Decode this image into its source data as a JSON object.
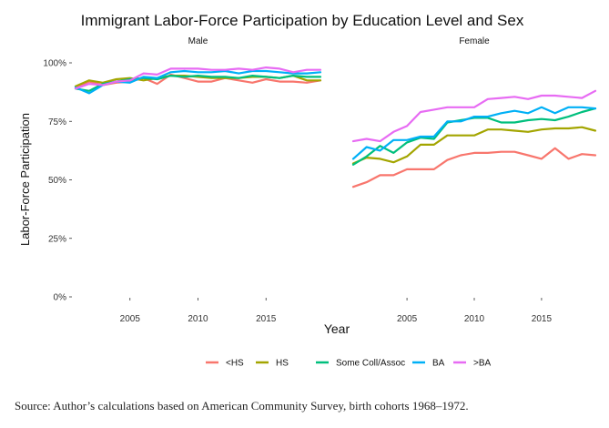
{
  "chart_data": {
    "type": "line",
    "title": "Immigrant Labor-Force Participation by Education Level and Sex",
    "xlabel": "Year",
    "ylabel": "Labor-Force Participation",
    "x": [
      2001,
      2002,
      2003,
      2004,
      2005,
      2006,
      2007,
      2008,
      2009,
      2010,
      2011,
      2012,
      2013,
      2014,
      2015,
      2016,
      2017,
      2018,
      2019
    ],
    "xticks": [
      2005,
      2010,
      2015
    ],
    "xtick_labels": [
      "2005",
      "2010",
      "2015"
    ],
    "xlim": [
      2000.8,
      2019.2
    ],
    "ylim": [
      0,
      100
    ],
    "yticks": [
      0,
      25,
      50,
      75,
      100
    ],
    "ytick_labels": [
      "0%",
      "25%",
      "50%",
      "75%",
      "100%"
    ],
    "grid": false,
    "legend_position": "bottom",
    "panels": [
      {
        "name": "Male",
        "series": [
          {
            "name": "<HS",
            "color": "#F8766D",
            "values": [
              89.5,
              92.0,
              90.5,
              91.5,
              92.0,
              93.5,
              91.0,
              95.0,
              93.5,
              92.0,
              92.0,
              93.5,
              92.5,
              91.5,
              93.0,
              92.0,
              92.0,
              91.5,
              92.5
            ]
          },
          {
            "name": "HS",
            "color": "#A3A500",
            "values": [
              90.0,
              92.5,
              91.5,
              93.0,
              93.5,
              92.5,
              93.5,
              94.5,
              94.5,
              94.0,
              93.5,
              93.5,
              93.5,
              94.0,
              94.0,
              93.5,
              94.5,
              92.5,
              92.5
            ]
          },
          {
            "name": "Some Coll/Assoc",
            "color": "#00BF7D",
            "values": [
              89.0,
              88.0,
              91.0,
              92.0,
              93.0,
              93.5,
              93.0,
              94.5,
              94.0,
              94.5,
              94.0,
              94.0,
              93.5,
              94.5,
              94.0,
              93.5,
              94.5,
              94.0,
              94.0
            ]
          },
          {
            "name": "BA",
            "color": "#00B0F6",
            "values": [
              89.5,
              87.0,
              90.5,
              92.0,
              91.5,
              94.0,
              93.5,
              96.0,
              96.5,
              96.0,
              96.0,
              96.5,
              95.5,
              96.5,
              96.5,
              96.0,
              95.5,
              95.5,
              96.0
            ]
          },
          {
            "name": ">BA",
            "color": "#E76BF3",
            "values": [
              89.0,
              91.0,
              90.5,
              92.0,
              92.5,
              95.5,
              95.0,
              97.5,
              97.5,
              97.5,
              97.0,
              97.0,
              97.5,
              97.0,
              98.0,
              97.5,
              96.0,
              97.0,
              97.0
            ]
          }
        ]
      },
      {
        "name": "Female",
        "series": [
          {
            "name": "<HS",
            "color": "#F8766D",
            "values": [
              47.0,
              49.0,
              52.0,
              52.0,
              54.5,
              54.5,
              54.5,
              58.5,
              60.5,
              61.5,
              61.5,
              62.0,
              62.0,
              60.5,
              59.0,
              63.5,
              59.0,
              61.0,
              60.5
            ]
          },
          {
            "name": "HS",
            "color": "#A3A500",
            "values": [
              57.0,
              59.5,
              59.0,
              57.5,
              60.0,
              65.0,
              65.0,
              69.0,
              69.0,
              69.0,
              71.5,
              71.5,
              71.0,
              70.5,
              71.5,
              72.0,
              72.0,
              72.5,
              71.0
            ]
          },
          {
            "name": "Some Coll/Assoc",
            "color": "#00BF7D",
            "values": [
              56.5,
              60.0,
              64.5,
              61.5,
              66.0,
              68.0,
              67.5,
              74.5,
              75.5,
              76.5,
              76.5,
              74.5,
              74.5,
              75.5,
              76.0,
              75.5,
              77.0,
              79.0,
              80.5
            ]
          },
          {
            "name": "BA",
            "color": "#00B0F6",
            "values": [
              59.0,
              64.0,
              62.5,
              67.0,
              67.0,
              68.5,
              68.5,
              75.0,
              75.0,
              77.0,
              77.0,
              78.5,
              79.5,
              78.5,
              81.0,
              78.5,
              81.0,
              81.0,
              80.5
            ]
          },
          {
            "name": ">BA",
            "color": "#E76BF3",
            "values": [
              66.5,
              67.5,
              66.5,
              70.5,
              73.0,
              79.0,
              80.0,
              81.0,
              81.0,
              81.0,
              84.5,
              85.0,
              85.5,
              84.5,
              86.0,
              86.0,
              85.5,
              85.0,
              88.0
            ]
          }
        ]
      }
    ]
  },
  "caption": "Source: Author’s calculations based on American Community Survey, birth cohorts 1968–1972."
}
